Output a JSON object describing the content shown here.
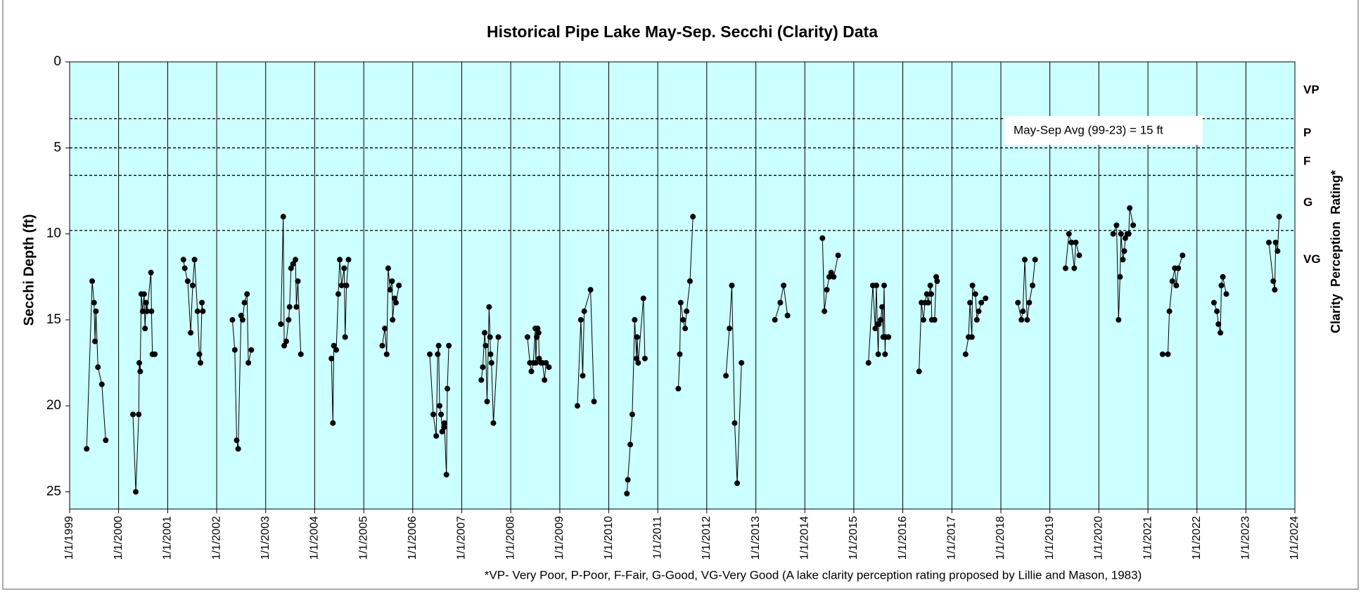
{
  "chart_data": {
    "type": "line",
    "title": "Historical Pipe Lake May-Sep. Secchi (Clarity) Data",
    "y_label": "Secchi Depth (ft)",
    "y2_label": "Clarity  Perception  Rating*",
    "annotation": "May-Sep Avg (99-23) = 15 ft",
    "footnote": "*VP- Very Poor, P-Poor, F-Fair, G-Good, VG-Very Good (A lake clarity perception rating proposed by Lillie and Mason, 1983)",
    "xlim": [
      "1/1/1999",
      "1/1/2024"
    ],
    "xticks": [
      "1/1/1999",
      "1/1/2000",
      "1/1/2001",
      "1/1/2002",
      "1/1/2003",
      "1/1/2004",
      "1/1/2005",
      "1/1/2006",
      "1/1/2007",
      "1/1/2008",
      "1/1/2009",
      "1/1/2010",
      "1/1/2011",
      "1/1/2012",
      "1/1/2013",
      "1/1/2014",
      "1/1/2015",
      "1/1/2016",
      "1/1/2017",
      "1/1/2018",
      "1/1/2019",
      "1/1/2020",
      "1/1/2021",
      "1/1/2022",
      "1/1/2023",
      "1/1/2024"
    ],
    "ylim": [
      0,
      26
    ],
    "y_inverted": true,
    "yticks": [
      0,
      5,
      10,
      15,
      20,
      25
    ],
    "grid": true,
    "background": "#ccffff",
    "reference_lines": [
      3.3,
      5,
      6.6,
      9.8
    ],
    "rating_labels": [
      "VP",
      "P",
      "F",
      "G",
      "VG"
    ],
    "series": [
      {
        "color": "#000000",
        "x": [
          "5/8/1999",
          "6/18/1999",
          "7/2/1999",
          "7/9/1999",
          "7/16/1999",
          "7/31/1999",
          "8/29/1999",
          "9/27/1999",
          null,
          "4/17/2000",
          "5/8/2000",
          "5/30/2000",
          "6/3/2000",
          "6/10/2000",
          "6/18/2000",
          "6/28/2000",
          "7/9/2000",
          "7/16/2000",
          "7/24/2000",
          "7/31/2000",
          "8/29/2000",
          "9/2/2000",
          "9/9/2000",
          "9/27/2000",
          null,
          "4/28/2001",
          "5/8/2001",
          "5/30/2001",
          "6/21/2001",
          "7/6/2001",
          "7/20/2001",
          "8/11/2001",
          "8/25/2001",
          "9/2/2001",
          "9/13/2001",
          "9/20/2001",
          null,
          "4/28/2002",
          "5/16/2002",
          "5/30/2002",
          "6/10/2002",
          "7/2/2002",
          "7/13/2002",
          "7/27/2002",
          "8/15/2002",
          "8/25/2002",
          "9/16/2002",
          null,
          "4/24/2003",
          "5/12/2003",
          "5/19/2003",
          "6/3/2003",
          "6/21/2003",
          "6/28/2003",
          "7/9/2003",
          "7/24/2003",
          "8/11/2003",
          "8/18/2003",
          "8/29/2003",
          "9/20/2003",
          null,
          "5/5/2004",
          "5/16/2004",
          "5/23/2004",
          "6/10/2004",
          "6/25/2004",
          "7/6/2004",
          "7/20/2004",
          "8/8/2004",
          "8/15/2004",
          "8/25/2004",
          "9/9/2004",
          null,
          "5/19/2005",
          "6/7/2005",
          "6/21/2005",
          "7/2/2005",
          "7/16/2005",
          "7/31/2005",
          "8/4/2005",
          "8/18/2005",
          "8/29/2005",
          "9/20/2005",
          null,
          "5/8/2006",
          "6/3/2006",
          "6/25/2006",
          "7/6/2006",
          "7/13/2006",
          "7/20/2006",
          "7/31/2006",
          "8/8/2006",
          "8/22/2006",
          "8/25/2006",
          "9/9/2006",
          "9/16/2006",
          "9/27/2006",
          null,
          "5/27/2007",
          "6/7/2007",
          "6/21/2007",
          "6/28/2007",
          "7/9/2007",
          "7/24/2007",
          "7/31/2007",
          "8/4/2007",
          "8/11/2007",
          "8/25/2007",
          "10/1/2007",
          null,
          "5/5/2008",
          "5/23/2008",
          "6/3/2008",
          "6/18/2008",
          "7/2/2008",
          "7/6/2008",
          "7/13/2008",
          "7/20/2008",
          "7/27/2008",
          "7/31/2008",
          "8/15/2008",
          "8/25/2008",
          "9/9/2008",
          "9/20/2008",
          "10/12/2008",
          null,
          "5/12/2009",
          "6/7/2009",
          "6/21/2009",
          "7/2/2009",
          "8/18/2009",
          "9/13/2009",
          null,
          "5/16/2010",
          "5/23/2010",
          "6/10/2010",
          "6/25/2010",
          "7/13/2010",
          "7/27/2010",
          "7/31/2010",
          "8/8/2010",
          "9/16/2010",
          "9/27/2010",
          null,
          "6/3/2011",
          "6/14/2011",
          "6/21/2011",
          "7/9/2011",
          "7/24/2011",
          "8/4/2011",
          "8/29/2011",
          "9/20/2011",
          null,
          "5/23/2012",
          "6/18/2012",
          "7/6/2012",
          "7/27/2012",
          "8/15/2012",
          "9/16/2012",
          null,
          "5/23/2013",
          "7/2/2013",
          "7/27/2013",
          "8/25/2013",
          null,
          "5/12/2014",
          "5/27/2014",
          "6/14/2014",
          "7/2/2014",
          "7/16/2014",
          "8/4/2014",
          "9/6/2014",
          null,
          "4/20/2015",
          "5/23/2015",
          "6/10/2015",
          "6/18/2015",
          "6/25/2015",
          "7/2/2015",
          "7/6/2015",
          "7/20/2015",
          "7/31/2015",
          "8/8/2015",
          "8/15/2015",
          "8/22/2015",
          "8/25/2015",
          "9/16/2015",
          null,
          "5/1/2016",
          "5/19/2016",
          "6/3/2016",
          "6/14/2016",
          "6/28/2016",
          "7/9/2016",
          "7/24/2016",
          "7/31/2016",
          "8/4/2016",
          "8/25/2016",
          "9/6/2016",
          "9/13/2016",
          null,
          "4/13/2017",
          "5/5/2017",
          "5/16/2017",
          "5/30/2017",
          "6/3/2017",
          "6/25/2017",
          "7/6/2017",
          "7/20/2017",
          "8/8/2017",
          "9/9/2017",
          null,
          "5/8/2018",
          "6/3/2018",
          "6/14/2018",
          "6/28/2018",
          "7/16/2018",
          "7/31/2018",
          "8/25/2018",
          "9/13/2018",
          null,
          "4/28/2019",
          "5/23/2019",
          "6/10/2019",
          "7/2/2019",
          "7/13/2019",
          "8/8/2019",
          null,
          "4/17/2020",
          "5/12/2020",
          "5/27/2020",
          "6/7/2020",
          "6/14/2020",
          "6/28/2020",
          "7/9/2020",
          "7/16/2020",
          "7/31/2020",
          "8/11/2020",
          "8/18/2020",
          "9/13/2020",
          null,
          "4/20/2021",
          "5/30/2021",
          "6/10/2021",
          "7/2/2021",
          "7/20/2021",
          "7/31/2021",
          "8/15/2021",
          "9/16/2021",
          null,
          "5/8/2022",
          "5/30/2022",
          "6/10/2022",
          "6/25/2022",
          "7/2/2022",
          "7/13/2022",
          "8/8/2022",
          null,
          "6/21/2023",
          "7/24/2023",
          "8/4/2023",
          "8/11/2023",
          "8/25/2023",
          "9/6/2023"
        ],
        "values": [
          22.5,
          12.75,
          14,
          16.25,
          14.5,
          17.75,
          18.75,
          22,
          null,
          20.5,
          25,
          20.5,
          17.5,
          18,
          13.5,
          14.5,
          13.5,
          15.5,
          14,
          14.5,
          12.25,
          14.5,
          17,
          17,
          null,
          11.5,
          12,
          12.75,
          15.75,
          13,
          11.5,
          14.5,
          17,
          17.5,
          14,
          14.5,
          null,
          15,
          16.75,
          22,
          22.5,
          14.75,
          15,
          14,
          13.5,
          17.5,
          16.75,
          null,
          15.25,
          9,
          16.5,
          16.25,
          15,
          14.25,
          12,
          11.75,
          11.5,
          14.25,
          12.75,
          17,
          null,
          17.25,
          21,
          16.5,
          16.75,
          13.5,
          11.5,
          13,
          12,
          16,
          13,
          11.5,
          null,
          16.5,
          15.5,
          17,
          12,
          13.25,
          12.75,
          15,
          13.75,
          14,
          13,
          null,
          17,
          20.5,
          21.75,
          17,
          16.5,
          20,
          20.5,
          21.5,
          21.25,
          21,
          24,
          19,
          16.5,
          null,
          18.5,
          17.75,
          15.75,
          16.5,
          19.75,
          14.25,
          16,
          17,
          17.5,
          21,
          16,
          null,
          16,
          17.5,
          18,
          17.5,
          15.5,
          17.5,
          16,
          15.5,
          15.75,
          17.25,
          17.5,
          17.5,
          18.5,
          17.5,
          17.75,
          null,
          20,
          15,
          18.25,
          14.5,
          13.25,
          19.75,
          null,
          25.1,
          24.3,
          22.25,
          20.5,
          15,
          17.25,
          16,
          17.5,
          13.75,
          17.25,
          null,
          19,
          17,
          14,
          15,
          15.5,
          14.5,
          12.75,
          9,
          null,
          18.25,
          15.5,
          13,
          21,
          24.5,
          17.5,
          null,
          15,
          14,
          13,
          14.75,
          null,
          10.25,
          14.5,
          13.25,
          12.5,
          12.25,
          12.5,
          11.25,
          null,
          17.5,
          13,
          15.5,
          13,
          15.25,
          17,
          15.25,
          15,
          14.25,
          16,
          13,
          17,
          16,
          16,
          null,
          18,
          14,
          15,
          14,
          13.5,
          14,
          13,
          13.5,
          15,
          15,
          12.5,
          12.75,
          null,
          17,
          16,
          14,
          16,
          13,
          13.5,
          15,
          14.5,
          14,
          13.75,
          null,
          14,
          15,
          14.5,
          11.5,
          15,
          14,
          13,
          11.5,
          null,
          12,
          10,
          10.5,
          12,
          10.5,
          11.25,
          null,
          10,
          9.5,
          15,
          12.5,
          10,
          11.5,
          11,
          10.25,
          10,
          10,
          8.5,
          9.5,
          null,
          17,
          17,
          14.5,
          12.75,
          12,
          13,
          12,
          11.25,
          null,
          14,
          14.5,
          15.25,
          15.75,
          13,
          12.5,
          13.5,
          null,
          10.5,
          12.75,
          13.25,
          10.5,
          11,
          9
        ]
      }
    ]
  }
}
